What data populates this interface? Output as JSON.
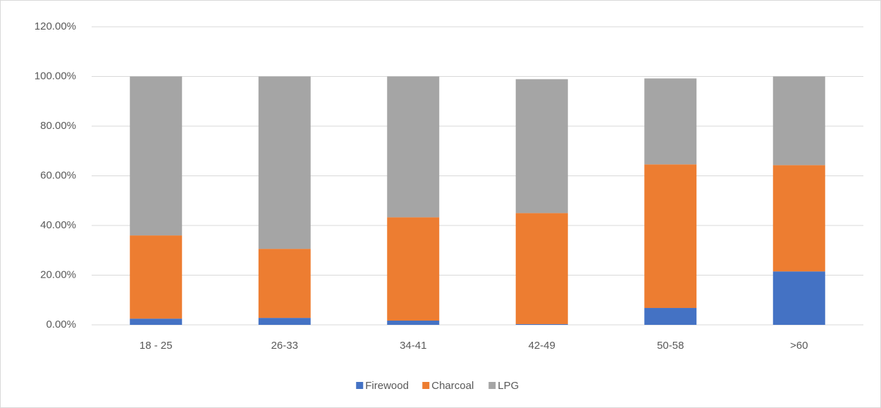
{
  "chart_data": {
    "type": "stacked-bar",
    "categories": [
      "18 - 25",
      "26-33",
      "34-41",
      "42-49",
      "50-58",
      ">60"
    ],
    "series": [
      {
        "name": "Firewood",
        "color": "#4472c4",
        "values": [
          2.5,
          2.8,
          1.7,
          0.3,
          6.8,
          21.5
        ]
      },
      {
        "name": "Charcoal",
        "color": "#ed7d31",
        "values": [
          33.5,
          27.8,
          41.6,
          44.7,
          57.8,
          42.8
        ]
      },
      {
        "name": "LPG",
        "color": "#a5a5a5",
        "values": [
          64,
          69.4,
          56.7,
          53.9,
          34.6,
          35.7
        ]
      }
    ],
    "ylim": [
      0,
      120
    ],
    "yticks": [
      {
        "value": 0,
        "label": "0.00%"
      },
      {
        "value": 20,
        "label": "20.00%"
      },
      {
        "value": 40,
        "label": "40.00%"
      },
      {
        "value": 60,
        "label": "60.00%"
      },
      {
        "value": 80,
        "label": "80.00%"
      },
      {
        "value": 100,
        "label": "100.00%"
      },
      {
        "value": 120,
        "label": "120.00%"
      }
    ],
    "grid": true,
    "legend": "bottom"
  }
}
